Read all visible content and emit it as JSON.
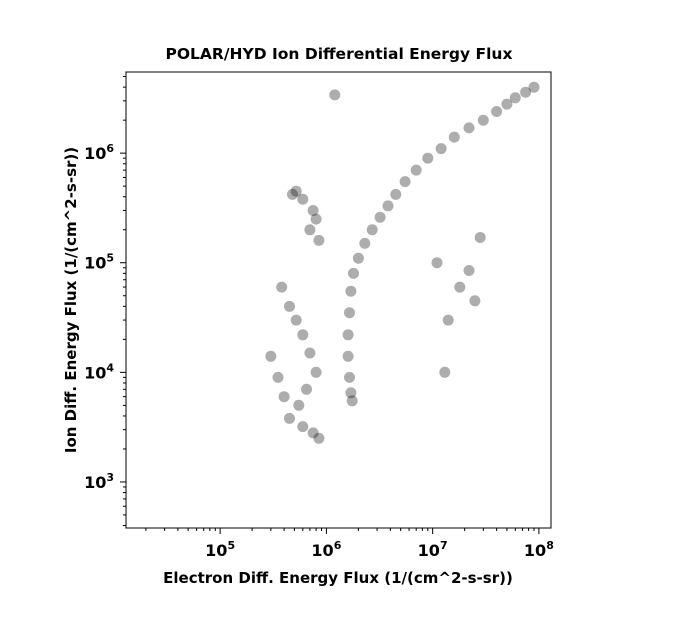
{
  "chart_data": {
    "type": "scatter",
    "title": "POLAR/HYD  Ion Differential Energy Flux",
    "xlabel": "Electron Diff. Energy Flux (1/(cm^2-s-sr))",
    "ylabel": "Ion Diff. Energy Flux (1/(cm^2-s-sr))",
    "x_scale": "log",
    "y_scale": "log",
    "xlim": [
      13000,
      130000000
    ],
    "ylim": [
      380,
      5500000
    ],
    "x_ticks": [
      {
        "base": "10",
        "exp": "5",
        "value": 100000
      },
      {
        "base": "10",
        "exp": "6",
        "value": 1000000
      },
      {
        "base": "10",
        "exp": "7",
        "value": 10000000
      },
      {
        "base": "10",
        "exp": "8",
        "value": 100000000
      }
    ],
    "y_ticks": [
      {
        "base": "10",
        "exp": "3",
        "value": 1000
      },
      {
        "base": "10",
        "exp": "4",
        "value": 10000
      },
      {
        "base": "10",
        "exp": "5",
        "value": 100000
      },
      {
        "base": "10",
        "exp": "6",
        "value": 1000000
      }
    ],
    "marker_color": "#000000",
    "marker_alpha": 0.32,
    "grid": false,
    "legend": "none",
    "series": [
      {
        "points": [
          [
            1200000,
            3400000
          ],
          [
            90000000,
            4000000
          ],
          [
            75000000,
            3600000
          ],
          [
            60000000,
            3200000
          ],
          [
            50000000,
            2800000
          ],
          [
            40000000,
            2400000
          ],
          [
            30000000,
            2000000
          ],
          [
            22000000,
            1700000
          ],
          [
            16000000,
            1400000
          ],
          [
            12000000,
            1100000
          ],
          [
            9000000,
            900000
          ],
          [
            7000000,
            700000
          ],
          [
            5500000,
            550000
          ],
          [
            4500000,
            420000
          ],
          [
            3800000,
            330000
          ],
          [
            3200000,
            260000
          ],
          [
            2700000,
            200000
          ],
          [
            2300000,
            150000
          ],
          [
            2000000,
            110000
          ],
          [
            1800000,
            80000
          ],
          [
            1700000,
            55000
          ],
          [
            1650000,
            35000
          ],
          [
            1600000,
            22000
          ],
          [
            1600000,
            14000
          ],
          [
            1650000,
            9000
          ],
          [
            1700000,
            6500
          ],
          [
            1750000,
            5500
          ],
          [
            520000,
            450000
          ],
          [
            480000,
            420000
          ],
          [
            600000,
            380000
          ],
          [
            750000,
            300000
          ],
          [
            800000,
            250000
          ],
          [
            700000,
            200000
          ],
          [
            850000,
            160000
          ],
          [
            380000,
            60000
          ],
          [
            450000,
            40000
          ],
          [
            520000,
            30000
          ],
          [
            600000,
            22000
          ],
          [
            700000,
            15000
          ],
          [
            800000,
            10000
          ],
          [
            650000,
            7000
          ],
          [
            550000,
            5000
          ],
          [
            450000,
            3800
          ],
          [
            600000,
            3200
          ],
          [
            750000,
            2800
          ],
          [
            850000,
            2500
          ],
          [
            300000,
            14000
          ],
          [
            350000,
            9000
          ],
          [
            400000,
            6000
          ],
          [
            28000000,
            170000
          ],
          [
            18000000,
            60000
          ],
          [
            14000000,
            30000
          ],
          [
            13000000,
            10000
          ],
          [
            25000000,
            45000
          ],
          [
            22000000,
            85000
          ],
          [
            11000000,
            100000
          ]
        ]
      }
    ]
  }
}
